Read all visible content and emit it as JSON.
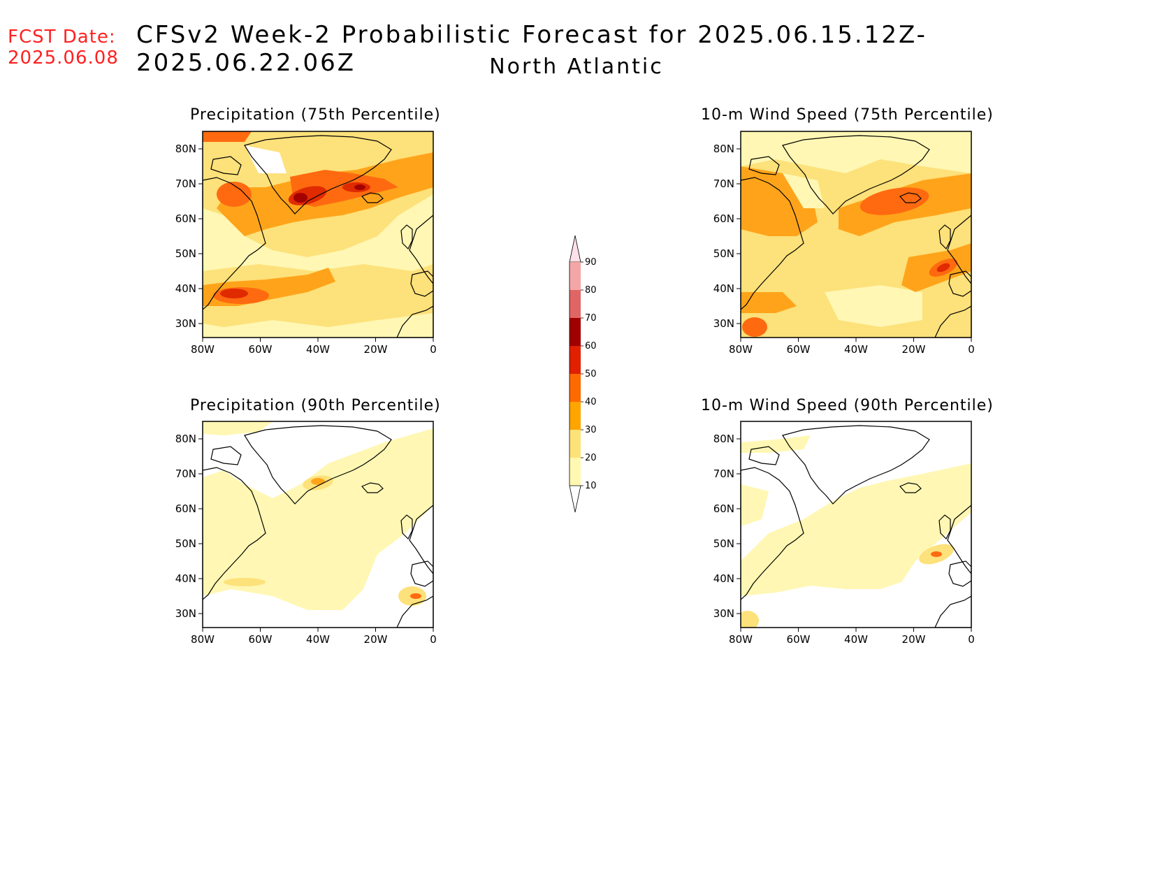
{
  "header": {
    "fcst_label": "FCST Date:",
    "fcst_date": "2025.06.08",
    "title": "CFSv2 Week-2 Probabilistic Forecast for 2025.06.15.12Z-2025.06.22.06Z",
    "region": "North Atlantic"
  },
  "panels": [
    {
      "id": "precip75",
      "title": "Precipitation (75th Percentile)"
    },
    {
      "id": "wind75",
      "title": "10-m Wind Speed (75th Percentile)"
    },
    {
      "id": "precip90",
      "title": "Precipitation (90th Percentile)"
    },
    {
      "id": "wind90",
      "title": "10-m Wind Speed (90th Percentile)"
    }
  ],
  "axes": {
    "lat_labels": [
      "80N",
      "70N",
      "60N",
      "50N",
      "40N",
      "30N"
    ],
    "lon_labels": [
      "80W",
      "60W",
      "40W",
      "20W",
      "0"
    ]
  },
  "colorbar": {
    "levels": [
      "10",
      "20",
      "30",
      "40",
      "50",
      "60",
      "70",
      "80",
      "90"
    ],
    "colors": [
      "#fff8b0",
      "#fde27a",
      "#ffa500",
      "#ff6a00",
      "#e02000",
      "#a00000",
      "#e06666",
      "#f4a6a6",
      "#ffe0e8"
    ]
  },
  "palette": {
    "c10": "#fff7b3",
    "c20": "#fde17a",
    "c30": "#ffa41a",
    "c40": "#ff6a10",
    "c50": "#e02a00",
    "c60": "#a30000",
    "title_red": "#ff2020"
  }
}
